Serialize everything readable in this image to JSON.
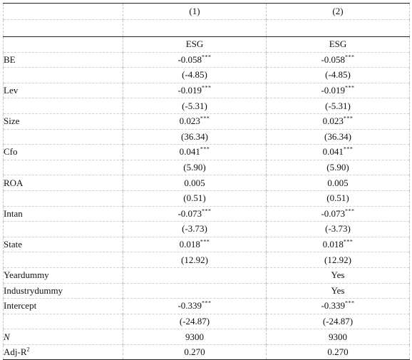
{
  "table": {
    "columns": [
      "(1)",
      "(2)"
    ],
    "dependent": [
      "ESG",
      "ESG"
    ],
    "rows": [
      {
        "label": "BE",
        "c1": "-0.058",
        "s1": "***",
        "c2": "-0.058",
        "s2": "***"
      },
      {
        "label": "",
        "c1": "(-4.85)",
        "s1": "",
        "c2": "(-4.85)",
        "s2": ""
      },
      {
        "label": "Lev",
        "c1": "-0.019",
        "s1": "***",
        "c2": "-0.019",
        "s2": "***"
      },
      {
        "label": "",
        "c1": "(-5.31)",
        "s1": "",
        "c2": "(-5.31)",
        "s2": ""
      },
      {
        "label": "Size",
        "c1": "0.023",
        "s1": "***",
        "c2": "0.023",
        "s2": "***"
      },
      {
        "label": "",
        "c1": "(36.34)",
        "s1": "",
        "c2": "(36.34)",
        "s2": ""
      },
      {
        "label": "Cfo",
        "c1": "0.041",
        "s1": "***",
        "c2": "0.041",
        "s2": "***"
      },
      {
        "label": "",
        "c1": "(5.90)",
        "s1": "",
        "c2": "(5.90)",
        "s2": ""
      },
      {
        "label": "ROA",
        "c1": "0.005",
        "s1": "",
        "c2": "0.005",
        "s2": ""
      },
      {
        "label": "",
        "c1": "(0.51)",
        "s1": "",
        "c2": "(0.51)",
        "s2": ""
      },
      {
        "label": "Intan",
        "c1": "-0.073",
        "s1": "***",
        "c2": "-0.073",
        "s2": "***"
      },
      {
        "label": "",
        "c1": "(-3.73)",
        "s1": "",
        "c2": "(-3.73)",
        "s2": ""
      },
      {
        "label": "State",
        "c1": "0.018",
        "s1": "***",
        "c2": "0.018",
        "s2": "***"
      },
      {
        "label": "",
        "c1": "(12.92)",
        "s1": "",
        "c2": "(12.92)",
        "s2": ""
      },
      {
        "label": "Yeardummy",
        "c1": "",
        "s1": "",
        "c2": "Yes",
        "s2": ""
      },
      {
        "label": "Industrydummy",
        "c1": "",
        "s1": "",
        "c2": "Yes",
        "s2": ""
      },
      {
        "label": "Intercept",
        "c1": "-0.339",
        "s1": "***",
        "c2": "-0.339",
        "s2": "***"
      },
      {
        "label": "",
        "c1": "(-24.87)",
        "s1": "",
        "c2": "(-24.87)",
        "s2": ""
      },
      {
        "label": "N",
        "italic": true,
        "c1": "9300",
        "s1": "",
        "c2": "9300",
        "s2": ""
      },
      {
        "label": "Adj-R",
        "label_sup": "2",
        "c1": "0.270",
        "s1": "",
        "c2": "0.270",
        "s2": ""
      }
    ]
  }
}
